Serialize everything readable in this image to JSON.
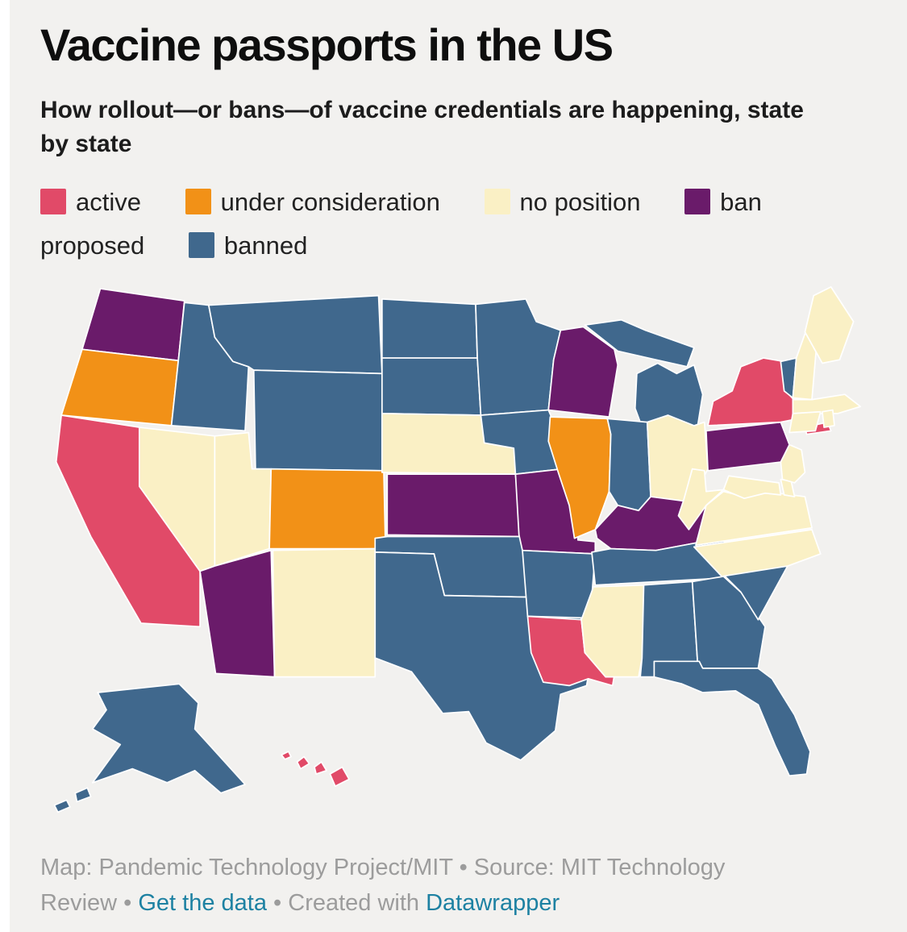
{
  "header": {
    "title": "Vaccine passports in the US",
    "subtitle": "How rollout—or bans—of vaccine credentials are happening, state by state"
  },
  "legend": {
    "items": [
      {
        "key": "active",
        "label": "active"
      },
      {
        "key": "under-consideration",
        "label": "under consideration"
      },
      {
        "key": "no-position",
        "label": "no position"
      },
      {
        "key": "ban-proposed",
        "label": "ban proposed"
      },
      {
        "key": "banned",
        "label": "banned"
      }
    ]
  },
  "chart_data": {
    "type": "choropleth",
    "title": "Vaccine passports in the US",
    "region": "United States, by state",
    "legend_entries": [
      "active",
      "under consideration",
      "no position",
      "ban proposed",
      "banned"
    ],
    "statuses": {
      "active": {
        "color": "#e14a68",
        "states": [
          "CA",
          "NY",
          "LA",
          "HI"
        ]
      },
      "under consideration": {
        "color": "#f29117",
        "states": [
          "OR",
          "CO",
          "IL"
        ]
      },
      "no position": {
        "color": "#faf0c5",
        "states": [
          "NV",
          "UT",
          "NE",
          "NM",
          "OH",
          "MS",
          "NC",
          "VA",
          "WV",
          "MD",
          "DE",
          "NJ",
          "CT",
          "RI",
          "MA",
          "NH",
          "ME"
        ]
      },
      "ban proposed": {
        "color": "#6a1b6a",
        "states": [
          "WA",
          "AZ",
          "WI",
          "KS",
          "MO",
          "KY",
          "PA"
        ]
      },
      "banned": {
        "color": "#40688d",
        "states": [
          "ID",
          "MT",
          "WY",
          "ND",
          "SD",
          "OK",
          "TX",
          "MN",
          "IA",
          "AR",
          "MI",
          "IN",
          "TN",
          "AL",
          "GA",
          "FL",
          "SC",
          "VT",
          "AK"
        ]
      }
    },
    "legend_key_to_status": {
      "active": "active",
      "under-consideration": "under consideration",
      "no-position": "no position",
      "ban-proposed": "ban proposed",
      "banned": "banned"
    }
  },
  "footer": {
    "segments": [
      {
        "name": "map-source-text",
        "text": "Map: Pandemic Technology Project/MIT • Source: MIT Technology Review • ",
        "link": false
      },
      {
        "name": "get-the-data-link",
        "text": "Get the data",
        "link": true
      },
      {
        "name": "created-with-text",
        "text": " • Created with ",
        "link": false
      },
      {
        "name": "datawrapper-link",
        "text": "Datawrapper",
        "link": true
      }
    ]
  }
}
